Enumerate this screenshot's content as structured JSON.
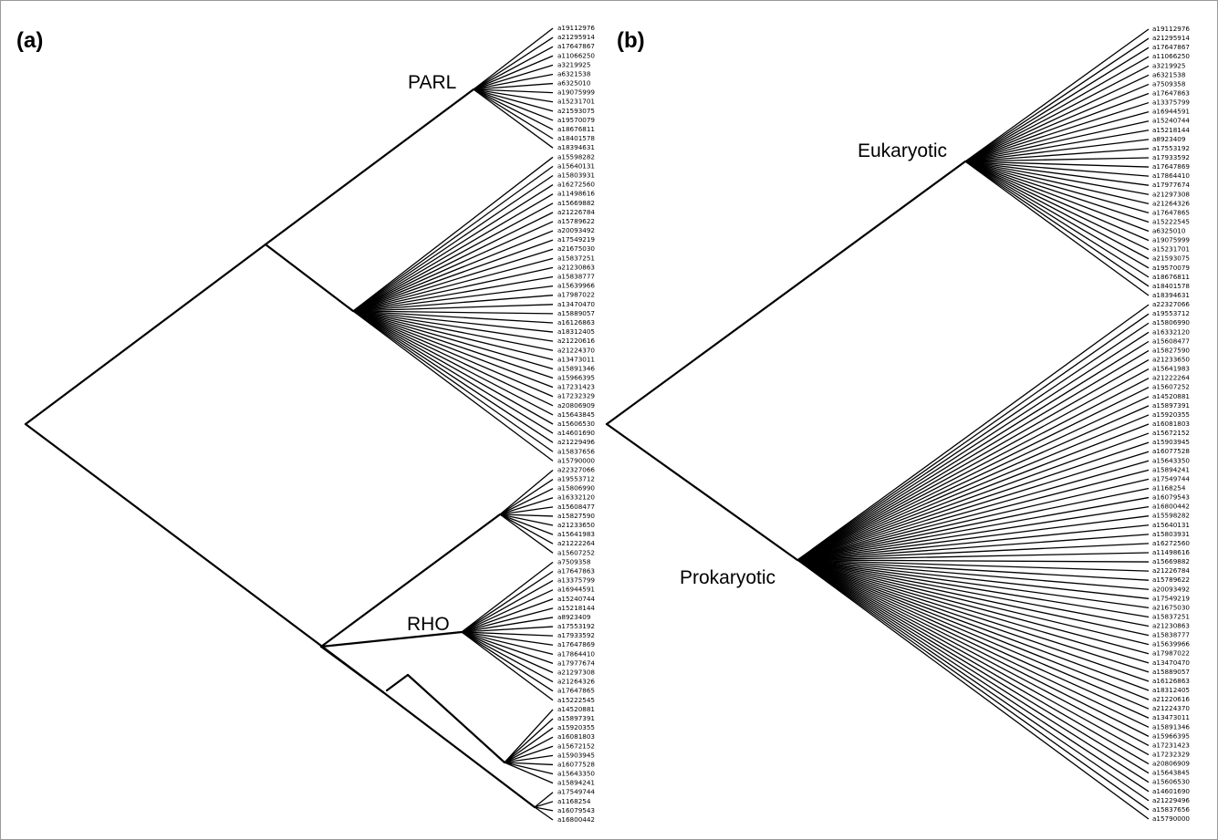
{
  "panel_a": {
    "label": "(a)",
    "clade_labels": {
      "parl": "PARL",
      "rho": "RHO"
    },
    "groups": {
      "parl": [
        "a19112976",
        "a21295914",
        "a17647867",
        "a11066250",
        "a3219925",
        "a6321538",
        "a6325010",
        "a19075999",
        "a15231701",
        "a21593075",
        "a19570079",
        "a18676811",
        "a18401578",
        "a18394631"
      ],
      "mid": [
        "a15598282",
        "a15640131",
        "a15803931",
        "a16272560",
        "a11498616",
        "a15669882",
        "a21226784",
        "a15789622",
        "a20093492",
        "a17549219",
        "a21675030",
        "a15837251",
        "a21230863",
        "a15838777",
        "a15639966",
        "a17987022",
        "a13470470",
        "a15889057",
        "a16126863",
        "a18312405",
        "a21220616",
        "a21224370",
        "a13473011",
        "a15891346",
        "a15966395",
        "a17231423",
        "a17232329",
        "a20806909",
        "a15643845",
        "a15606530",
        "a14601690",
        "a21229496",
        "a15837656",
        "a15790000"
      ],
      "g1": [
        "a22327066",
        "a19553712",
        "a15806990",
        "a16332120",
        "a15608477",
        "a15827590",
        "a21233650",
        "a15641983",
        "a21222264",
        "a15607252"
      ],
      "rho": [
        "a7509358",
        "a17647863",
        "a13375799",
        "a16944591",
        "a15240744",
        "a15218144",
        "a8923409",
        "a17553192",
        "a17933592",
        "a17647869",
        "a17864410",
        "a17977674",
        "a21297308",
        "a21264326",
        "a17647865",
        "a15222545"
      ],
      "g3": [
        "a14520881",
        "a15897391",
        "a15920355",
        "a16081803",
        "a15672152",
        "a15903945",
        "a16077528",
        "a15643350",
        "a15894241"
      ],
      "g4": [
        "a17549744",
        "a1168254",
        "a16079543",
        "a16800442"
      ]
    }
  },
  "panel_b": {
    "label": "(b)",
    "clade_labels": {
      "euk": "Eukaryotic",
      "prok": "Prokaryotic"
    },
    "groups": {
      "euk": [
        "a19112976",
        "a21295914",
        "a17647867",
        "a11066250",
        "a3219925",
        "a6321538",
        "a7509358",
        "a17647863",
        "a13375799",
        "a16944591",
        "a15240744",
        "a15218144",
        "a8923409",
        "a17553192",
        "a17933592",
        "a17647869",
        "a17864410",
        "a17977674",
        "a21297308",
        "a21264326",
        "a17647865",
        "a15222545",
        "a6325010",
        "a19075999",
        "a15231701",
        "a21593075",
        "a19570079",
        "a18676811",
        "a18401578",
        "a18394631"
      ],
      "prok": [
        "a22327066",
        "a19553712",
        "a15806990",
        "a16332120",
        "a15608477",
        "a15827590",
        "a21233650",
        "a15641983",
        "a21222264",
        "a15607252",
        "a14520881",
        "a15897391",
        "a15920355",
        "a16081803",
        "a15672152",
        "a15903945",
        "a16077528",
        "a15643350",
        "a15894241",
        "a17549744",
        "a1168254",
        "a16079543",
        "a16800442",
        "a15598282",
        "a15640131",
        "a15803931",
        "a16272560",
        "a11498616",
        "a15669882",
        "a21226784",
        "a15789622",
        "a20093492",
        "a17549219",
        "a21675030",
        "a15837251",
        "a21230863",
        "a15838777",
        "a15639966",
        "a17987022",
        "a13470470",
        "a15889057",
        "a16126863",
        "a18312405",
        "a21220616",
        "a21224370",
        "a13473011",
        "a15891346",
        "a15966395",
        "a17231423",
        "a17232329",
        "a20806909",
        "a15643845",
        "a15606530",
        "a14601690",
        "a21229496",
        "a15837656",
        "a15790000"
      ]
    }
  }
}
